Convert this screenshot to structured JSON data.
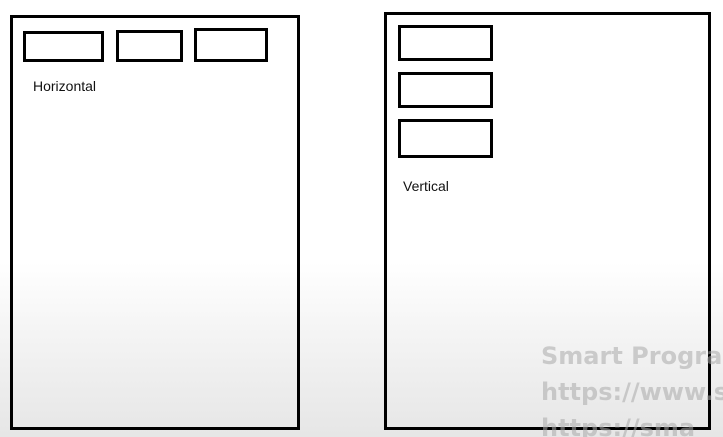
{
  "diagrams": {
    "horizontal": {
      "label": "Horizontal",
      "box_count": 3
    },
    "vertical": {
      "label": "Vertical",
      "box_count": 3
    }
  },
  "watermark": {
    "line1": "Smart Program",
    "line2": "https://www.sm",
    "line3": "https://sma"
  }
}
